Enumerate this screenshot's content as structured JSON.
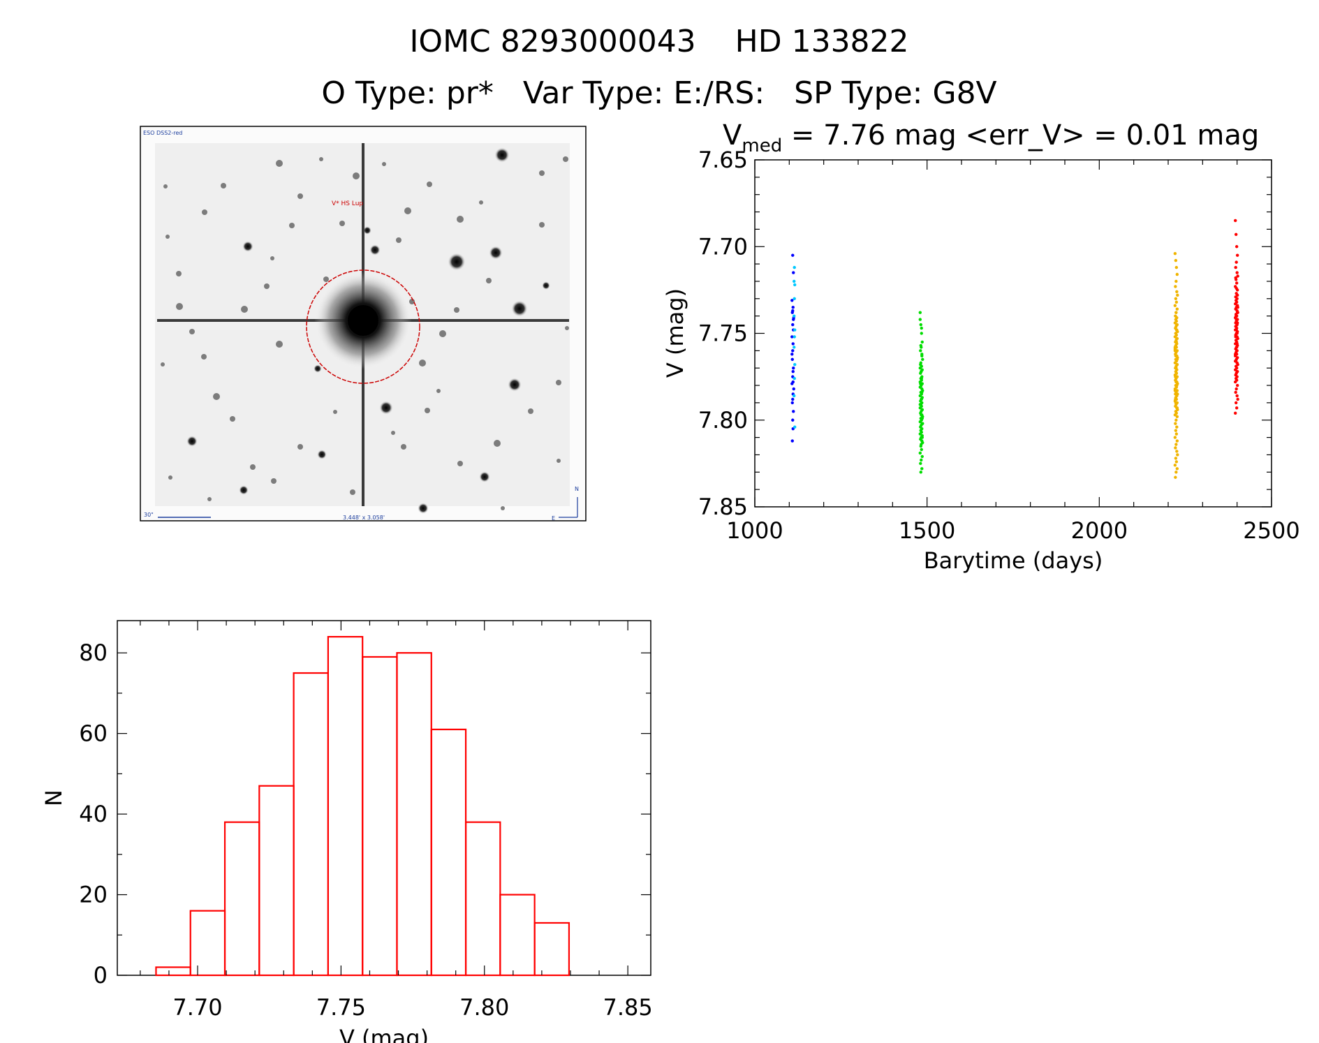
{
  "header": {
    "title_line1": "IOMC 8293000043    HD 133822",
    "title_line2": "O Type: pr*   Var Type: E:/RS:   SP Type: G8V"
  },
  "finder_image": {
    "survey_label": "ESO DSS2-red",
    "target_label": "V* HS Lup",
    "scale_label": "30\"",
    "fov_label": "3.448' x 3.058'",
    "north_label": "N",
    "east_label": "E",
    "target_circle_color": "#cc0000"
  },
  "chart_data": [
    {
      "type": "scatter",
      "title_prefix": "V",
      "title_subscript": "med",
      "title_rest": " = 7.76 mag <err_V> = 0.01 mag",
      "xlabel": "Barytime (days)",
      "ylabel": "V (mag)",
      "xlim": [
        1000,
        2500
      ],
      "ylim": [
        7.65,
        7.85
      ],
      "y_inverted": true,
      "xticks": [
        1000,
        1500,
        2000,
        2500
      ],
      "xtick_labels": [
        "1000",
        "1500",
        "2000",
        "2500"
      ],
      "yticks": [
        7.65,
        7.7,
        7.75,
        7.8,
        7.85
      ],
      "ytick_labels": [
        "7.65",
        "7.70",
        "7.75",
        "7.80",
        "7.85"
      ],
      "series": [
        {
          "color": "#0000ff",
          "x": [
            1110,
            1112,
            1108,
            1111,
            1109,
            1113,
            1110,
            1112,
            1108,
            1111,
            1110,
            1109,
            1112,
            1111,
            1110,
            1108,
            1113,
            1111,
            1110,
            1109,
            1112,
            1110,
            1111,
            1109,
            1112,
            1110,
            1108,
            1111
          ],
          "y": [
            7.705,
            7.715,
            7.731,
            7.735,
            7.738,
            7.741,
            7.745,
            7.748,
            7.752,
            7.756,
            7.76,
            7.765,
            7.77,
            7.772,
            7.775,
            7.779,
            7.782,
            7.785,
            7.788,
            7.79,
            7.795,
            7.8,
            7.805,
            7.812,
            7.742,
            7.737,
            7.762,
            7.778
          ]
        },
        {
          "color": "#00c8ff",
          "x": [
            1115,
            1114,
            1116,
            1115,
            1114,
            1116,
            1115,
            1114,
            1116,
            1115,
            1114,
            1116
          ],
          "y": [
            7.712,
            7.72,
            7.722,
            7.73,
            7.74,
            7.748,
            7.752,
            7.758,
            7.768,
            7.776,
            7.786,
            7.804
          ]
        },
        {
          "color": "#00dd00",
          "x": [
            1480,
            1482,
            1484,
            1486,
            1483,
            1481,
            1485,
            1487,
            1482,
            1484,
            1480,
            1486,
            1483,
            1481,
            1485,
            1482,
            1484,
            1480,
            1486,
            1483,
            1481,
            1485,
            1487,
            1482,
            1484,
            1480,
            1486,
            1483,
            1481,
            1485,
            1482,
            1484,
            1480,
            1486,
            1483,
            1481,
            1485,
            1487,
            1482,
            1484,
            1480,
            1486,
            1483,
            1481,
            1485,
            1482,
            1484,
            1480,
            1486,
            1483,
            1481,
            1485,
            1487,
            1482,
            1484,
            1480,
            1486,
            1483,
            1481,
            1485,
            1482,
            1484,
            1480,
            1486,
            1483,
            1481,
            1485,
            1487,
            1482,
            1484,
            1480,
            1486,
            1483,
            1481,
            1485,
            1482,
            1484,
            1480,
            1486,
            1483
          ],
          "y": [
            7.738,
            7.745,
            7.75,
            7.755,
            7.758,
            7.76,
            7.762,
            7.765,
            7.767,
            7.769,
            7.77,
            7.771,
            7.772,
            7.773,
            7.775,
            7.776,
            7.777,
            7.778,
            7.779,
            7.78,
            7.781,
            7.782,
            7.783,
            7.784,
            7.785,
            7.786,
            7.787,
            7.788,
            7.789,
            7.79,
            7.791,
            7.792,
            7.793,
            7.794,
            7.795,
            7.796,
            7.797,
            7.798,
            7.799,
            7.8,
            7.801,
            7.802,
            7.803,
            7.804,
            7.805,
            7.806,
            7.807,
            7.808,
            7.809,
            7.81,
            7.811,
            7.812,
            7.813,
            7.815,
            7.817,
            7.819,
            7.821,
            7.823,
            7.825,
            7.828,
            7.83,
            7.788,
            7.791,
            7.794,
            7.797,
            7.779,
            7.784,
            7.802,
            7.806,
            7.776,
            7.781,
            7.799,
            7.772,
            7.768,
            7.763,
            7.757,
            7.747,
            7.742,
            7.81,
            7.814
          ]
        },
        {
          "color": "#f0b400",
          "x": [
            2220,
            2222,
            2224,
            2226,
            2223,
            2221,
            2225,
            2227,
            2222,
            2224,
            2220,
            2226,
            2223,
            2221,
            2225,
            2222,
            2224,
            2220,
            2226,
            2223,
            2221,
            2225,
            2227,
            2222,
            2224,
            2220,
            2226,
            2223,
            2221,
            2225,
            2222,
            2224,
            2220,
            2226,
            2223,
            2221,
            2225,
            2227,
            2222,
            2224,
            2220,
            2226,
            2223,
            2221,
            2225,
            2222,
            2224,
            2220,
            2226,
            2223,
            2221,
            2225,
            2227,
            2222,
            2224,
            2220,
            2226,
            2223,
            2221,
            2225,
            2222,
            2224,
            2220,
            2226,
            2223,
            2221,
            2225,
            2227,
            2222,
            2224,
            2220,
            2226,
            2223,
            2221,
            2225,
            2222,
            2224,
            2220,
            2226,
            2223,
            2221,
            2225,
            2227,
            2222,
            2224,
            2220,
            2226,
            2223,
            2221,
            2225,
            2222,
            2224,
            2220,
            2226,
            2223,
            2221,
            2225,
            2227,
            2222,
            2224,
            2220,
            2226,
            2223,
            2221,
            2225,
            2222,
            2224,
            2220,
            2226,
            2223
          ],
          "y": [
            7.704,
            7.708,
            7.712,
            7.716,
            7.72,
            7.723,
            7.726,
            7.728,
            7.73,
            7.732,
            7.734,
            7.736,
            7.738,
            7.74,
            7.741,
            7.742,
            7.743,
            7.744,
            7.745,
            7.746,
            7.747,
            7.748,
            7.749,
            7.75,
            7.751,
            7.752,
            7.753,
            7.754,
            7.755,
            7.756,
            7.757,
            7.758,
            7.759,
            7.76,
            7.761,
            7.762,
            7.763,
            7.764,
            7.765,
            7.766,
            7.767,
            7.768,
            7.769,
            7.77,
            7.771,
            7.772,
            7.773,
            7.774,
            7.775,
            7.776,
            7.777,
            7.778,
            7.779,
            7.78,
            7.781,
            7.782,
            7.783,
            7.784,
            7.785,
            7.786,
            7.787,
            7.788,
            7.789,
            7.79,
            7.791,
            7.792,
            7.793,
            7.794,
            7.795,
            7.796,
            7.797,
            7.798,
            7.8,
            7.802,
            7.804,
            7.806,
            7.808,
            7.81,
            7.812,
            7.814,
            7.816,
            7.818,
            7.82,
            7.822,
            7.824,
            7.826,
            7.828,
            7.83,
            7.833,
            7.745,
            7.75,
            7.755,
            7.76,
            7.765,
            7.77,
            7.775,
            7.78,
            7.785,
            7.79,
            7.748,
            7.758,
            7.768,
            7.778,
            7.788,
            7.753,
            7.763,
            7.773,
            7.783,
            7.793,
            7.738
          ]
        },
        {
          "color": "#ff0000",
          "x": [
            2395,
            2397,
            2399,
            2401,
            2398,
            2396,
            2400,
            2402,
            2397,
            2399,
            2395,
            2401,
            2398,
            2396,
            2400,
            2397,
            2399,
            2395,
            2401,
            2398,
            2396,
            2400,
            2402,
            2397,
            2399,
            2395,
            2401,
            2398,
            2396,
            2400,
            2397,
            2399,
            2395,
            2401,
            2398,
            2396,
            2400,
            2402,
            2397,
            2399,
            2395,
            2401,
            2398,
            2396,
            2400,
            2397,
            2399,
            2395,
            2401,
            2398,
            2396,
            2400,
            2402,
            2397,
            2399,
            2395,
            2401,
            2398,
            2396,
            2400,
            2397,
            2399,
            2395,
            2401,
            2398,
            2396,
            2400,
            2402,
            2397,
            2399,
            2395,
            2401,
            2398,
            2396,
            2400,
            2397,
            2399,
            2395,
            2401,
            2398,
            2396,
            2400,
            2402,
            2397,
            2399,
            2395,
            2401,
            2398,
            2396,
            2400
          ],
          "y": [
            7.685,
            7.693,
            7.7,
            7.705,
            7.709,
            7.712,
            7.715,
            7.717,
            7.719,
            7.721,
            7.723,
            7.725,
            7.727,
            7.729,
            7.73,
            7.731,
            7.732,
            7.733,
            7.734,
            7.735,
            7.736,
            7.737,
            7.738,
            7.739,
            7.74,
            7.741,
            7.742,
            7.743,
            7.744,
            7.745,
            7.746,
            7.747,
            7.748,
            7.749,
            7.75,
            7.751,
            7.752,
            7.753,
            7.754,
            7.755,
            7.756,
            7.757,
            7.758,
            7.759,
            7.76,
            7.761,
            7.762,
            7.763,
            7.764,
            7.765,
            7.766,
            7.767,
            7.768,
            7.769,
            7.77,
            7.771,
            7.772,
            7.773,
            7.774,
            7.775,
            7.776,
            7.777,
            7.778,
            7.78,
            7.782,
            7.784,
            7.786,
            7.788,
            7.79,
            7.793,
            7.796,
            7.738,
            7.742,
            7.746,
            7.75,
            7.754,
            7.758,
            7.762,
            7.744,
            7.748,
            7.752,
            7.756,
            7.735,
            7.74,
            7.76,
            7.766,
            7.728,
            7.724,
            7.718,
            7.772
          ]
        }
      ]
    },
    {
      "type": "bar",
      "subtype": "histogram",
      "xlabel": "V (mag)",
      "ylabel": "N",
      "xlim": [
        7.672,
        7.858
      ],
      "ylim": [
        0,
        88
      ],
      "xticks": [
        7.7,
        7.75,
        7.8,
        7.85
      ],
      "xtick_labels": [
        "7.70",
        "7.75",
        "7.80",
        "7.85"
      ],
      "yticks": [
        0,
        20,
        40,
        60,
        80
      ],
      "ytick_labels": [
        "0",
        "20",
        "40",
        "60",
        "80"
      ],
      "bin_edges": [
        7.6855,
        7.6975,
        7.7095,
        7.7215,
        7.7335,
        7.7455,
        7.7575,
        7.7695,
        7.7815,
        7.7935,
        7.8055,
        7.8175,
        7.8295
      ],
      "bin_width": 0.012,
      "values": [
        2,
        16,
        38,
        47,
        75,
        84,
        79,
        80,
        61,
        38,
        20,
        13
      ],
      "color": "#ff0000"
    }
  ]
}
